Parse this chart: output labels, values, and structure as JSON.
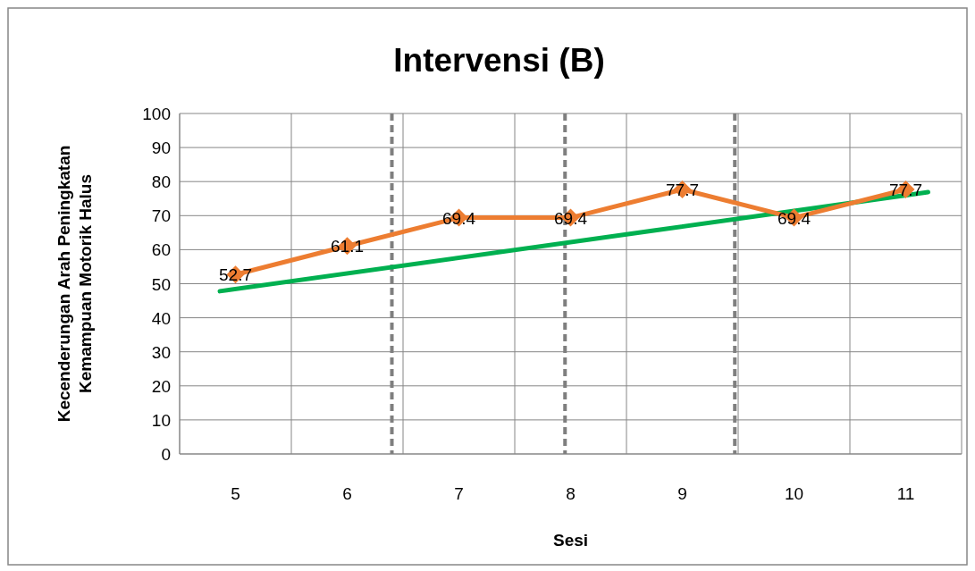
{
  "chart_data": {
    "type": "line",
    "title": "Intervensi (B)",
    "xlabel": "Sesi",
    "ylabel": "Kecenderungan Arah Peningkatan\nKemampuan Motorik Halus",
    "x": [
      5,
      6,
      7,
      8,
      9,
      10,
      11
    ],
    "xlim": [
      4.5,
      11.5
    ],
    "xticks": [
      5,
      6,
      7,
      8,
      9,
      10,
      11
    ],
    "ylim": [
      0,
      100
    ],
    "yticks": [
      0,
      10,
      20,
      30,
      40,
      50,
      60,
      70,
      80,
      90,
      100
    ],
    "series": [
      {
        "color": "#ed7d31",
        "values": [
          52.7,
          61.1,
          69.4,
          69.4,
          77.7,
          69.4,
          77.7
        ],
        "marker": "diamond",
        "data_labels": true
      },
      {
        "type": "line",
        "color": "#00b050",
        "x": [
          4.86,
          11.2
        ],
        "values": [
          47.8,
          76.9
        ],
        "marker": "none"
      }
    ],
    "ref_lines": [
      {
        "axis": "x",
        "value": 6.4,
        "color": "#7f7f7f",
        "line_style": "dashed"
      },
      {
        "axis": "x",
        "value": 7.95,
        "color": "#7f7f7f",
        "line_style": "dashed"
      },
      {
        "axis": "x",
        "value": 9.47,
        "color": "#7f7f7f",
        "line_style": "dashed"
      }
    ],
    "grid": true
  }
}
